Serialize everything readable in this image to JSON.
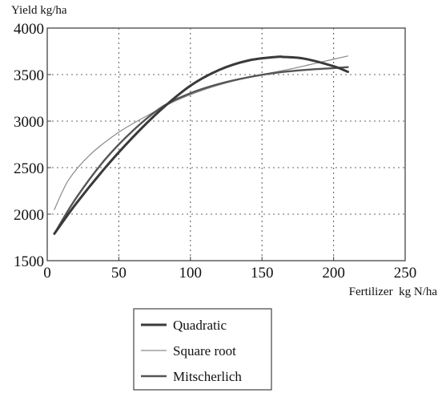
{
  "chart_data": {
    "type": "line",
    "xlabel": "Fertilizer  kg N/ha",
    "ylabel": "Yield kg/ha",
    "xlim": [
      0,
      250
    ],
    "ylim": [
      1500,
      4000
    ],
    "xticks": [
      0,
      50,
      100,
      150,
      200,
      250
    ],
    "yticks": [
      1500,
      2000,
      2500,
      3000,
      3500,
      4000
    ],
    "grid": true,
    "legend_position": "bottom-center",
    "series": [
      {
        "name": "Quadratic",
        "color": "#3a3a3a",
        "stroke": "thick",
        "x": [
          5,
          20,
          40,
          60,
          80,
          100,
          120,
          140,
          160,
          165,
          180,
          200,
          210
        ],
        "y": [
          1790,
          2110,
          2490,
          2830,
          3130,
          3380,
          3550,
          3650,
          3690,
          3690,
          3670,
          3590,
          3530
        ]
      },
      {
        "name": "Square root",
        "color": "#8a8a8a",
        "stroke": "thin",
        "x": [
          5,
          15,
          30,
          50,
          70,
          90,
          110,
          130,
          150,
          170,
          190,
          210
        ],
        "y": [
          2050,
          2370,
          2640,
          2880,
          3060,
          3220,
          3340,
          3430,
          3500,
          3560,
          3630,
          3700
        ]
      },
      {
        "name": "Mitscherlich",
        "color": "#555555",
        "stroke": "medium",
        "x": [
          5,
          20,
          40,
          60,
          80,
          100,
          120,
          140,
          160,
          180,
          200,
          210
        ],
        "y": [
          1790,
          2170,
          2580,
          2900,
          3150,
          3300,
          3400,
          3470,
          3520,
          3550,
          3570,
          3580
        ]
      }
    ]
  }
}
